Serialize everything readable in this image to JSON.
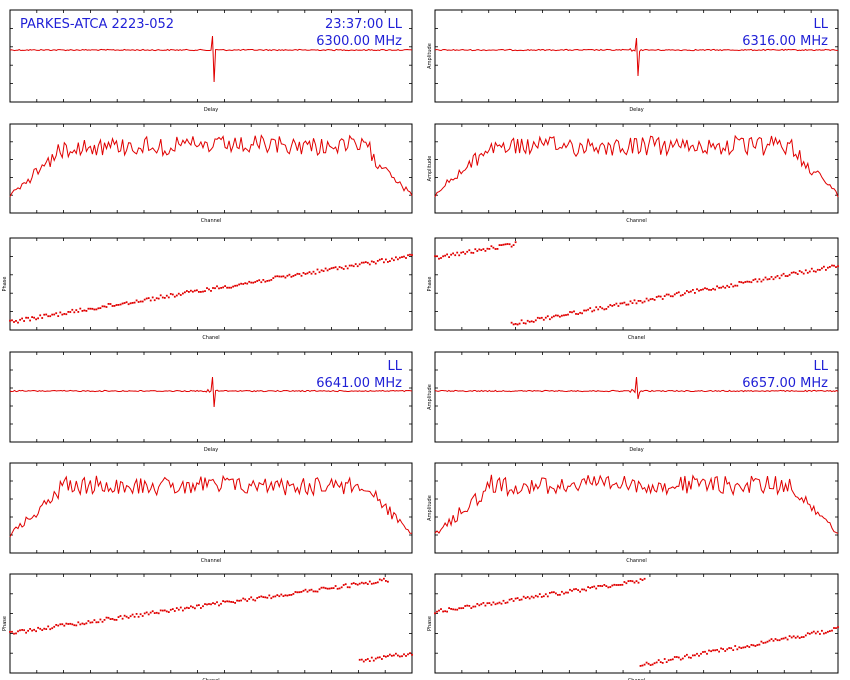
{
  "chart_data": [
    {
      "type": "line",
      "role": "delay",
      "xlabel": "Delay",
      "ylabel": "",
      "annotations": [
        "PARKES-ATCA 2223-052",
        "23:37:00   LL",
        "6300.00 MHz"
      ],
      "color": "#e00000"
    },
    {
      "type": "line",
      "role": "delay",
      "xlabel": "Delay",
      "ylabel": "Amplitude",
      "annotations": [
        "",
        "LL",
        "6316.00 MHz"
      ],
      "color": "#e00000"
    },
    {
      "type": "line",
      "role": "amplitude",
      "xlabel": "Channel",
      "ylabel": "",
      "annotations": [],
      "color": "#e00000"
    },
    {
      "type": "line",
      "role": "amplitude",
      "xlabel": "Channel",
      "ylabel": "Amplitude",
      "annotations": [],
      "color": "#e00000"
    },
    {
      "type": "scatter",
      "role": "phase",
      "xlabel": "Chanel",
      "ylabel": "Phase",
      "annotations": [],
      "color": "#e00000"
    },
    {
      "type": "scatter",
      "role": "phase",
      "xlabel": "Chanel",
      "ylabel": "Phase",
      "annotations": [],
      "color": "#e00000"
    },
    {
      "type": "line",
      "role": "delay",
      "xlabel": "Delay",
      "ylabel": "",
      "annotations": [
        "",
        "LL",
        "6641.00 MHz"
      ],
      "color": "#e00000"
    },
    {
      "type": "line",
      "role": "delay",
      "xlabel": "Delay",
      "ylabel": "Amplitude",
      "annotations": [
        "",
        "LL",
        "6657.00 MHz"
      ],
      "color": "#e00000"
    },
    {
      "type": "line",
      "role": "amplitude",
      "xlabel": "Channel",
      "ylabel": "",
      "annotations": [],
      "color": "#e00000"
    },
    {
      "type": "line",
      "role": "amplitude",
      "xlabel": "Channel",
      "ylabel": "Amplitude",
      "annotations": [],
      "color": "#e00000"
    },
    {
      "type": "scatter",
      "role": "phase",
      "xlabel": "Chanel",
      "ylabel": "Phase",
      "annotations": [],
      "color": "#e00000"
    },
    {
      "type": "scatter",
      "role": "phase",
      "xlabel": "Chanel",
      "ylabel": "Phase",
      "annotations": [],
      "color": "#e00000"
    }
  ]
}
